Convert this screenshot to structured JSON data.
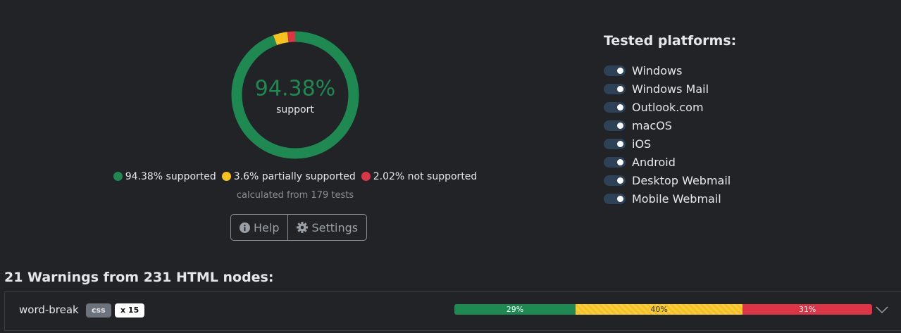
{
  "summary": {
    "percent_label": "94.38%",
    "caption": "support",
    "segments": [
      {
        "value": 94.38,
        "label": "94.38% supported",
        "color": "#1e8a52"
      },
      {
        "value": 3.6,
        "label": "3.6% partially supported",
        "color": "#f7c21b"
      },
      {
        "value": 2.02,
        "label": "2.02% not supported",
        "color": "#dc3545"
      }
    ],
    "note": "calculated from 179 tests",
    "buttons": [
      "Help",
      "Settings"
    ]
  },
  "platforms": {
    "title": "Tested platforms:",
    "items": [
      "Windows",
      "Windows Mail",
      "Outlook.com",
      "macOS",
      "iOS",
      "Android",
      "Desktop Webmail",
      "Mobile Webmail"
    ]
  },
  "warnings": {
    "title": "21 Warnings from 231 HTML nodes:",
    "rows": [
      {
        "name": "word-break",
        "tag": "css",
        "count": "x 15",
        "segments": [
          {
            "value": 29,
            "label": "29%",
            "color": "#1e8a52"
          },
          {
            "value": 40,
            "label": "40%",
            "color": "#f7c21b"
          },
          {
            "value": 31,
            "label": "31%",
            "color": "#dc3545"
          }
        ]
      }
    ]
  }
}
